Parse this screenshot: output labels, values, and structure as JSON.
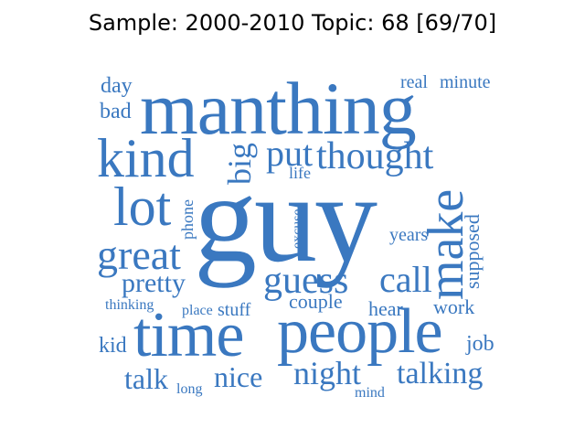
{
  "title": "Sample: 2000-2010 Topic: 68 [69/70]",
  "word_color": "#3a78c0",
  "words": [
    {
      "text": "guy",
      "weight": 1.0
    },
    {
      "text": "manthing",
      "weight": 0.82
    },
    {
      "text": "people",
      "weight": 0.62
    },
    {
      "text": "time",
      "weight": 0.6
    },
    {
      "text": "make",
      "weight": 0.55
    },
    {
      "text": "kind",
      "weight": 0.5
    },
    {
      "text": "lot",
      "weight": 0.48
    },
    {
      "text": "great",
      "weight": 0.44
    },
    {
      "text": "thought",
      "weight": 0.4
    },
    {
      "text": "guess",
      "weight": 0.4
    },
    {
      "text": "call",
      "weight": 0.38
    },
    {
      "text": "night",
      "weight": 0.34
    },
    {
      "text": "talking",
      "weight": 0.34
    },
    {
      "text": "put",
      "weight": 0.36
    },
    {
      "text": "big",
      "weight": 0.34
    },
    {
      "text": "nice",
      "weight": 0.3
    },
    {
      "text": "talk",
      "weight": 0.3
    },
    {
      "text": "pretty",
      "weight": 0.28
    },
    {
      "text": "supposed",
      "weight": 0.22
    },
    {
      "text": "day",
      "weight": 0.22
    },
    {
      "text": "bad",
      "weight": 0.22
    },
    {
      "text": "kid",
      "weight": 0.22
    },
    {
      "text": "job",
      "weight": 0.22
    },
    {
      "text": "work",
      "weight": 0.2
    },
    {
      "text": "hear",
      "weight": 0.2
    },
    {
      "text": "couple",
      "weight": 0.2
    },
    {
      "text": "real",
      "weight": 0.18
    },
    {
      "text": "minute",
      "weight": 0.18
    },
    {
      "text": "stuff",
      "weight": 0.18
    },
    {
      "text": "years",
      "weight": 0.18
    },
    {
      "text": "phone",
      "weight": 0.17
    },
    {
      "text": "excuse",
      "weight": 0.15
    },
    {
      "text": "life",
      "weight": 0.16
    },
    {
      "text": "thinking",
      "weight": 0.15
    },
    {
      "text": "place",
      "weight": 0.15
    },
    {
      "text": "long",
      "weight": 0.14
    },
    {
      "text": "mind",
      "weight": 0.14
    }
  ]
}
